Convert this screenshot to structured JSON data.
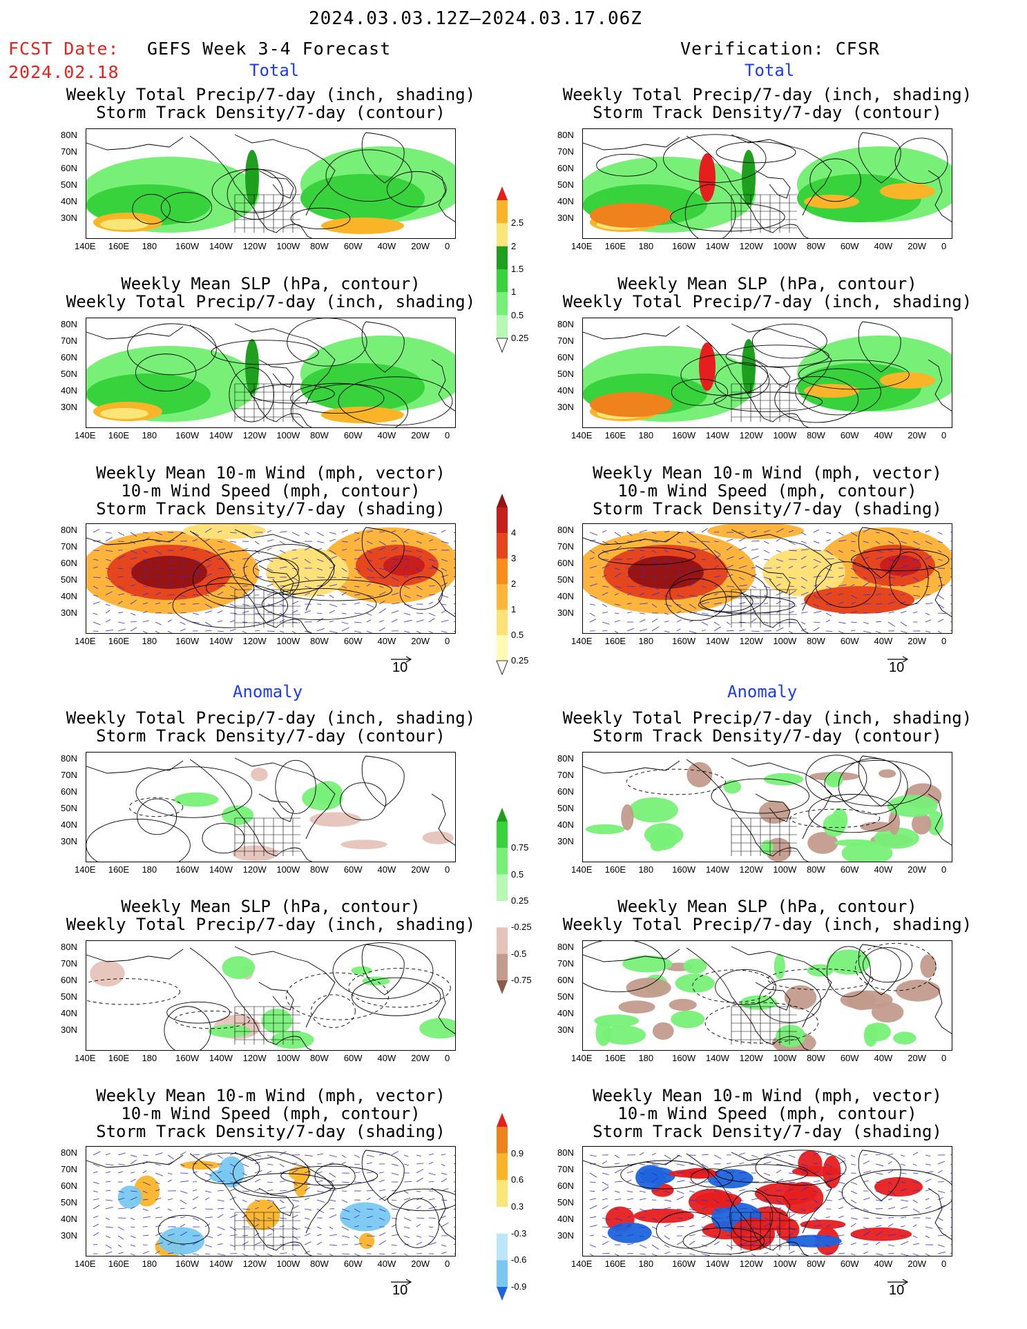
{
  "header": {
    "date_range": "2024.03.03.12Z—2024.03.17.06Z",
    "fcst_label": "FCST Date:",
    "fcst_date": "2024.02.18",
    "left_title": "GEFS Week 3-4 Forecast",
    "right_title": "Verification: CFSR",
    "total_label": "Total",
    "anomaly_label": "Anomaly"
  },
  "titles": {
    "precip_storm": [
      "Weekly Total Precip/7-day (inch, shading)",
      "Storm Track Density/7-day (contour)"
    ],
    "slp_precip": [
      "Weekly Mean SLP (hPa, contour)",
      "Weekly Total Precip/7-day (inch, shading)"
    ],
    "wind_storm": [
      "Weekly Mean 10-m Wind (mph, vector)",
      "10-m Wind Speed (mph, contour)",
      "Storm Track Density/7-day (shading)"
    ]
  },
  "axes": {
    "lat_labels": [
      "80N",
      "70N",
      "60N",
      "50N",
      "40N",
      "30N"
    ],
    "lon_labels": [
      "140E",
      "160E",
      "180",
      "160W",
      "140W",
      "120W",
      "100W",
      "80W",
      "60W",
      "40W",
      "20W",
      "0"
    ]
  },
  "vector_ref": "10",
  "colorbars": {
    "total_precip": [
      "2.5",
      "2",
      "1.5",
      "1",
      "0.5",
      "0.25"
    ],
    "total_storm": [
      "4",
      "3",
      "2",
      "1",
      "0.5",
      "0.25"
    ],
    "anom_precip": [
      "0.75",
      "0.5",
      "0.25",
      "-0.25",
      "-0.5",
      "-0.75"
    ],
    "anom_storm": [
      "0.9",
      "0.6",
      "0.3",
      "-0.3",
      "-0.6",
      "-0.9"
    ]
  },
  "colors": {
    "header_red": "#e8211d",
    "section_blue": "#1c3cf0",
    "precip_green": [
      "#b4fab4",
      "#78f078",
      "#37d23c",
      "#1ea01e"
    ],
    "precip_yellow_red": [
      "#fae678",
      "#fab428",
      "#f0821e",
      "#e61e1e"
    ],
    "storm": [
      "#fffab4",
      "#ffe178",
      "#ffb43c",
      "#fa8c1e",
      "#e6461e",
      "#c81e1e",
      "#961414"
    ],
    "anom_brown": [
      "#e6c3b9",
      "#c39b8c",
      "#8c5a46"
    ],
    "anom_blue": [
      "#bee6fa",
      "#78c8f0",
      "#1e64dc"
    ]
  }
}
